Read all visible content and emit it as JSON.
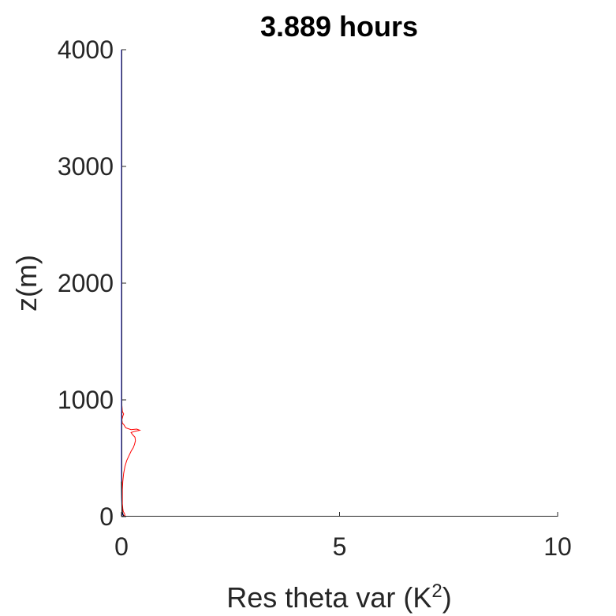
{
  "chart_data": {
    "type": "line",
    "title": "3.889 hours",
    "xlabel": "Res theta var (K",
    "xlabel_superscript": "2",
    "xlabel_suffix": ")",
    "ylabel": "z(m)",
    "xlim": [
      0,
      10
    ],
    "ylim": [
      0,
      4000
    ],
    "x_ticks": [
      "0",
      "5",
      "10"
    ],
    "x_tick_values": [
      0,
      5,
      10
    ],
    "y_ticks": [
      "0",
      "1000",
      "2000",
      "3000",
      "4000"
    ],
    "y_tick_values": [
      0,
      1000,
      2000,
      3000,
      4000
    ],
    "grid": false,
    "series": [
      {
        "color": "#ff0000",
        "x": [
          0.0,
          0.08,
          0.07,
          0.04,
          0.03,
          0.02,
          0.02,
          0.02,
          0.03,
          0.05,
          0.08,
          0.12,
          0.17,
          0.22,
          0.27,
          0.3,
          0.32,
          0.31,
          0.26,
          0.22,
          0.3,
          0.42,
          0.35,
          0.22,
          0.1,
          0.05,
          0.02,
          0.01,
          0.03,
          0.05,
          0.02,
          0.01,
          0.0,
          0.0,
          0.0
        ],
        "y": [
          0,
          10,
          25,
          45,
          70,
          110,
          160,
          230,
          300,
          370,
          430,
          480,
          520,
          560,
          590,
          620,
          650,
          680,
          700,
          720,
          730,
          740,
          750,
          745,
          760,
          790,
          800,
          830,
          860,
          880,
          900,
          950,
          1000,
          2000,
          4000
        ]
      },
      {
        "color": "#0000ff",
        "x": [
          0.01,
          0.02,
          0.01,
          0.005,
          0.0,
          0.0,
          0.0
        ],
        "y": [
          0,
          20,
          60,
          150,
          400,
          1000,
          4000
        ]
      },
      {
        "color": "#000000",
        "x": [
          0.06,
          0.04,
          0.02,
          0.01,
          0.0
        ],
        "y": [
          0,
          15,
          40,
          100,
          300
        ]
      }
    ]
  }
}
